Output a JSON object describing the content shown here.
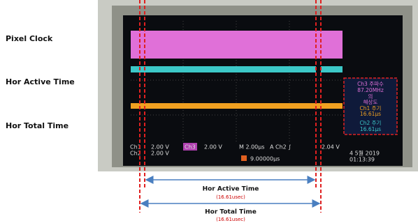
{
  "labels": {
    "pixel_clock": "Pixel Clock",
    "hor_active": "Hor Active Time",
    "hor_total": "Hor Total Time"
  },
  "scope": {
    "side_panel": {
      "ch3_line1": "Ch3 주파수",
      "ch3_line2": "87.20MHz",
      "ch3_line3": "의",
      "ch3_line4": "해상도",
      "ch1_line1": "Ch1 주기",
      "ch1_line2": "16.61μs",
      "ch2_line1": "Ch2 주기",
      "ch2_line2": "16.61μs"
    },
    "status": {
      "ch1": "Ch1",
      "ch1_scale": "2.00 V",
      "ch2": "Ch2",
      "ch2_scale": "2.00 V",
      "ch3": "Ch3",
      "ch3_scale": "2.00 V",
      "time_scale": "M 2.00μs",
      "trigger": "A  Ch2 ∫",
      "trigger_level": "2.04 V",
      "position": "9.00000μs",
      "date": "4 5월 2019",
      "time": "01:13:39"
    }
  },
  "annotations": {
    "active_label": "Hor Active Time",
    "active_value": "(16.61usec)",
    "total_label": "Hor Total Time",
    "total_value": "(16.61usec)"
  }
}
